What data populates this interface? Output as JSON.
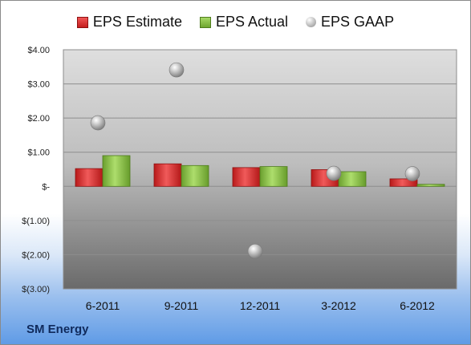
{
  "chart_data": {
    "type": "bar",
    "categories": [
      "6-2011",
      "9-2011",
      "12-2011",
      "3-2012",
      "6-2012"
    ],
    "series": [
      {
        "name": "EPS Estimate",
        "kind": "bar",
        "color": "#d42a2a",
        "values": [
          0.52,
          0.66,
          0.55,
          0.49,
          0.22
        ]
      },
      {
        "name": "EPS Actual",
        "kind": "bar",
        "color": "#8cc04b",
        "values": [
          0.9,
          0.61,
          0.58,
          0.43,
          0.06
        ]
      },
      {
        "name": "EPS GAAP",
        "kind": "scatter",
        "color": "#a6a6a6",
        "values": [
          1.86,
          3.41,
          -1.9,
          0.38,
          0.37
        ]
      }
    ],
    "ylim": [
      -3,
      4
    ],
    "yticks": [
      4,
      3,
      2,
      1,
      0,
      -1,
      -2,
      -3
    ],
    "ytick_labels": [
      "$4.00",
      "$3.00",
      "$2.00",
      "$1.00",
      "$-",
      "$(1.00)",
      "$(2.00)",
      "$(3.00)"
    ],
    "xlabel": "",
    "ylabel": "",
    "grid": true,
    "legend": "top-center"
  },
  "company": "SM Energy"
}
